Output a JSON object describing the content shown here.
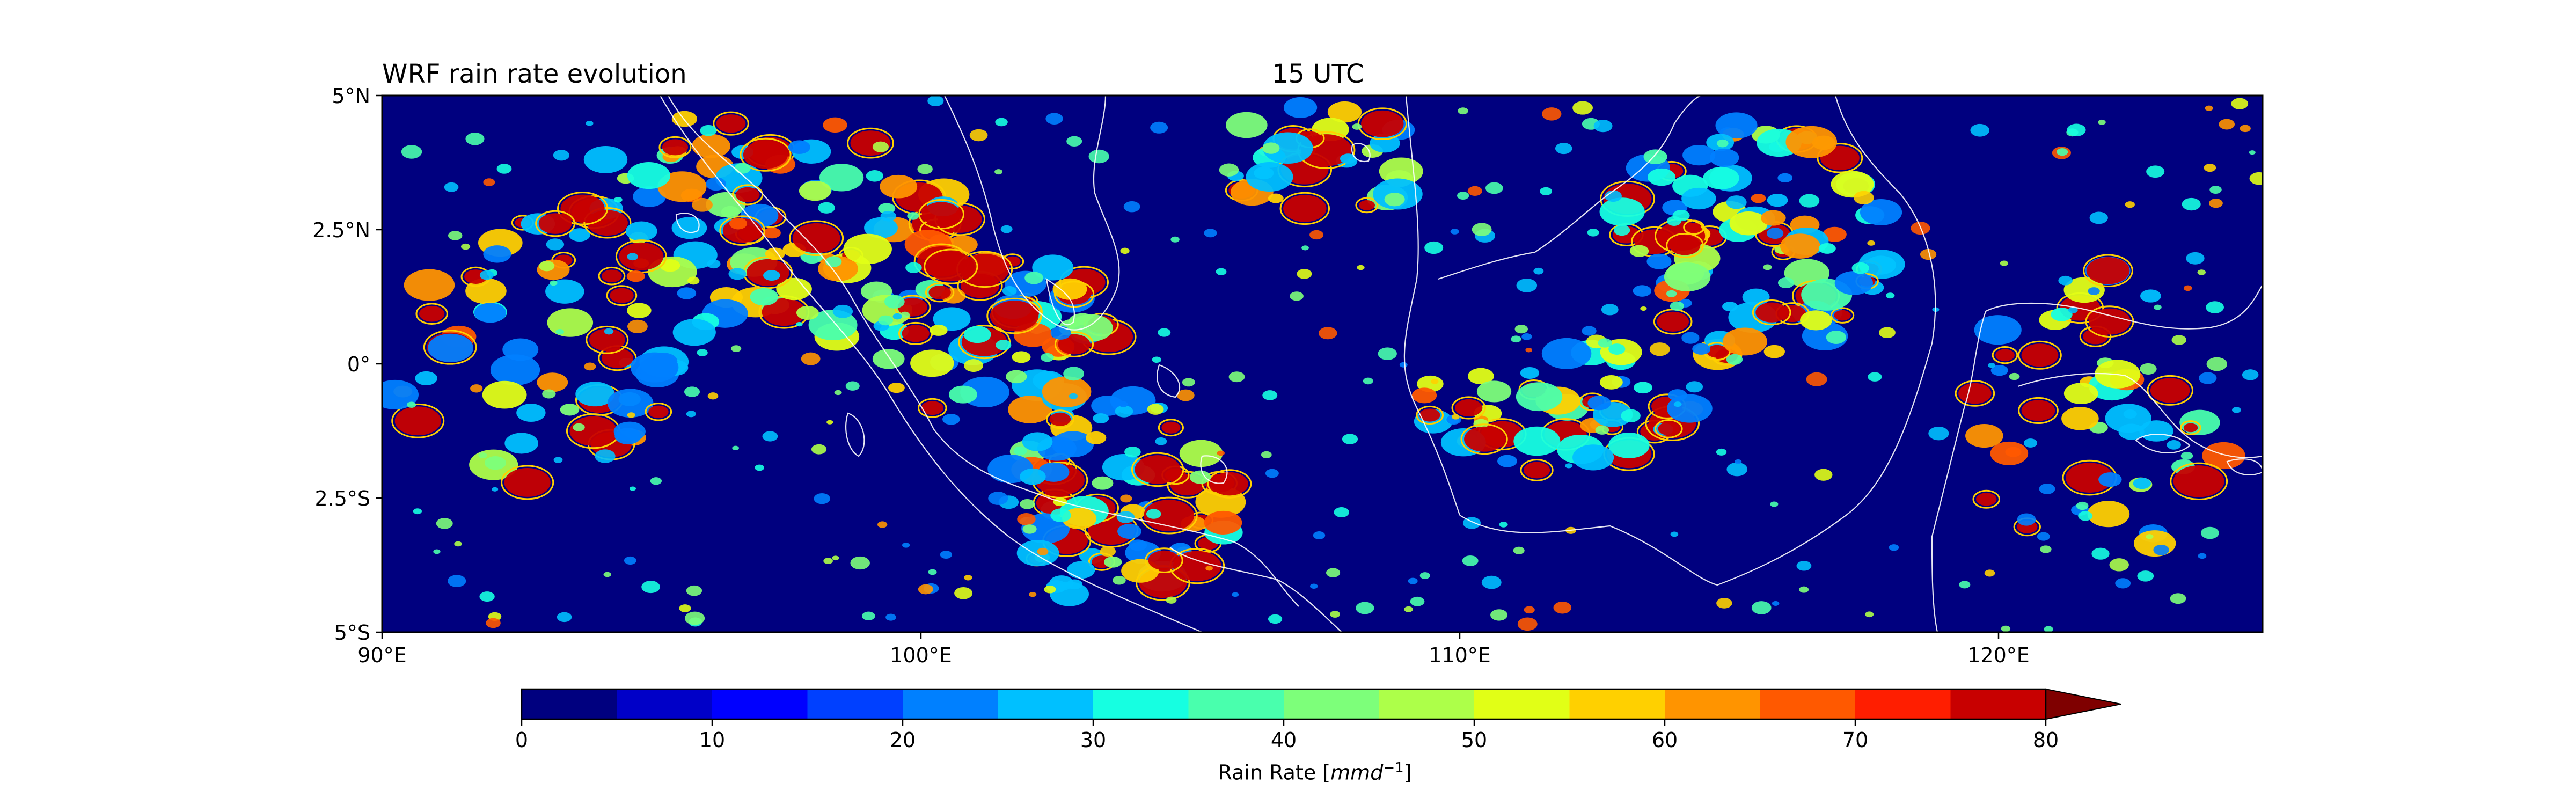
{
  "titles": {
    "left": "WRF rain rate evolution",
    "center": "15 UTC"
  },
  "map": {
    "lat_ticks": [
      "5°N",
      "2.5°N",
      "0°",
      "2.5°S",
      "5°S"
    ],
    "lon_ticks": [
      "90°E",
      "100°E",
      "110°E",
      "120°E"
    ],
    "lat_range": [
      -5,
      5
    ],
    "lon_range": [
      90,
      124.9
    ],
    "background_color": "#00007f",
    "coastline_color": "#ffffff"
  },
  "colorbar": {
    "label_text": "Rain Rate [",
    "label_unit": "mmd",
    "label_exp": "−1",
    "label_close": "]",
    "tick_labels": [
      "0",
      "10",
      "20",
      "30",
      "40",
      "50",
      "60",
      "70",
      "80"
    ],
    "extend": "max",
    "colors": [
      "#00007f",
      "#0000c8",
      "#0000ff",
      "#0040ff",
      "#0080ff",
      "#00c0ff",
      "#16ffe1",
      "#49ffad",
      "#7dff7a",
      "#adff49",
      "#e1ff16",
      "#ffd000",
      "#ff9400",
      "#ff5900",
      "#ff1e00",
      "#c80000",
      "#7f0000"
    ]
  }
}
